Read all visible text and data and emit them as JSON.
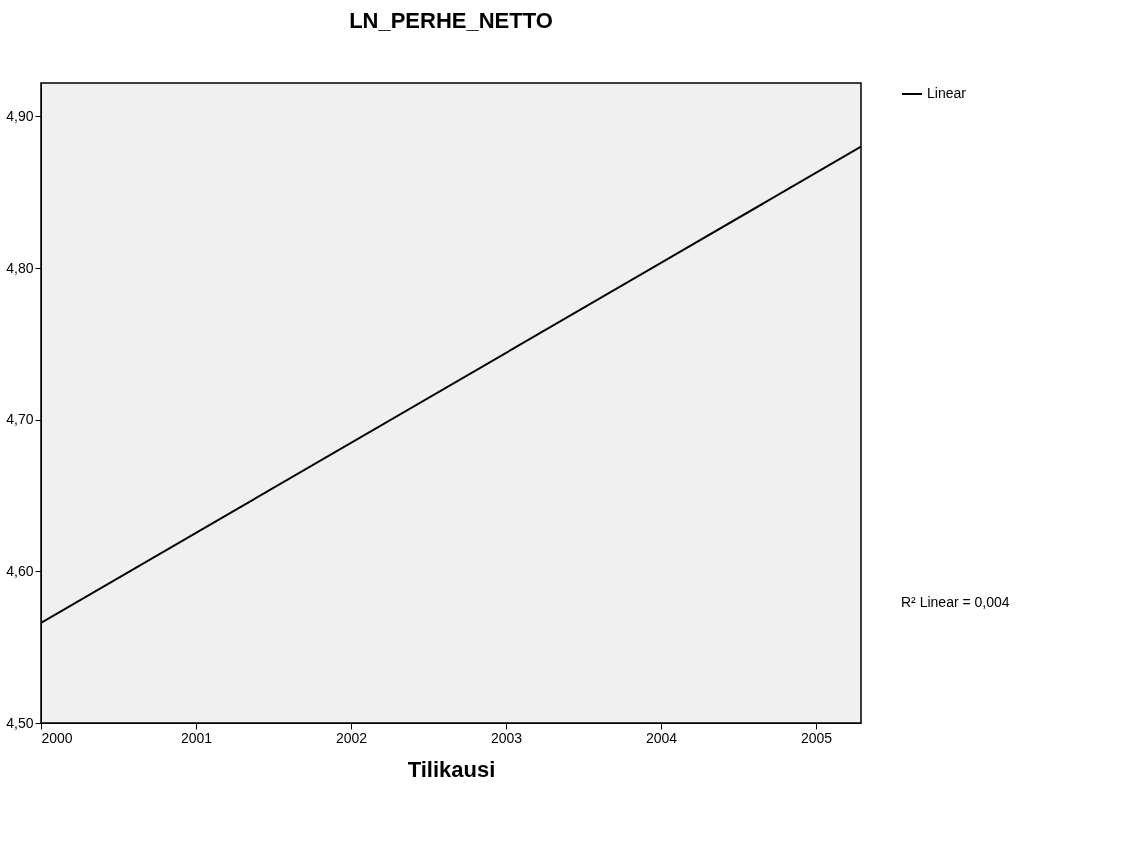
{
  "chart_data": {
    "type": "line",
    "title": "LN_PERHE_NETTO",
    "xlabel": "Tilikausi",
    "x": [
      2000,
      2005.29
    ],
    "series": [
      {
        "name": "Linear",
        "color": "#000000",
        "values": [
          4.566,
          4.88
        ]
      }
    ],
    "xlim": [
      2000,
      2005.29
    ],
    "xticks": [
      2000,
      2001,
      2002,
      2003,
      2004,
      2005
    ],
    "ylim": [
      4.5,
      4.922
    ],
    "yticks": [
      {
        "value": 4.5,
        "label": "4,50"
      },
      {
        "value": 4.6,
        "label": "4,60"
      },
      {
        "value": 4.7,
        "label": "4,70"
      },
      {
        "value": 4.8,
        "label": "4,80"
      },
      {
        "value": 4.9,
        "label": "4,90"
      }
    ],
    "annotations": [
      "R² Linear = 0,004"
    ],
    "legend": "top right",
    "grid": false,
    "marker": "none",
    "line_style": "solid"
  }
}
